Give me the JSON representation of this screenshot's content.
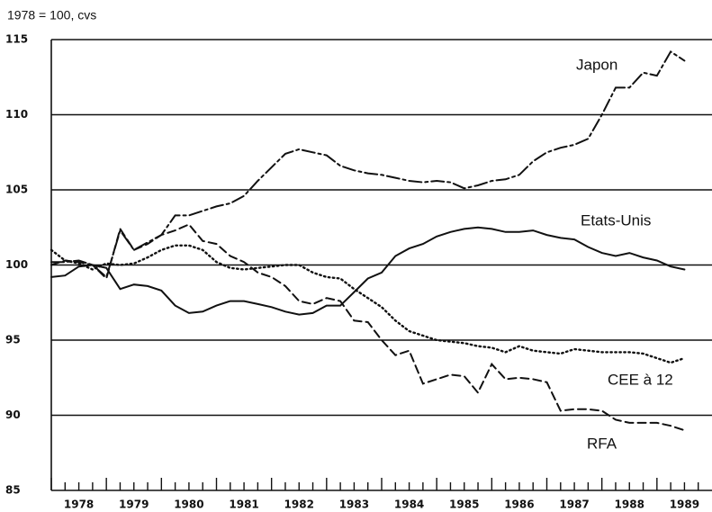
{
  "chart_data": {
    "type": "line",
    "y_label": "1978 = 100, cvs",
    "x": [
      1978,
      1978.25,
      1978.5,
      1978.75,
      1979,
      1979.25,
      1979.5,
      1979.75,
      1980,
      1980.25,
      1980.5,
      1980.75,
      1981,
      1981.25,
      1981.5,
      1981.75,
      1982,
      1982.25,
      1982.5,
      1982.75,
      1983,
      1983.25,
      1983.5,
      1983.75,
      1984,
      1984.25,
      1984.5,
      1984.75,
      1985,
      1985.25,
      1985.5,
      1985.75,
      1986,
      1986.25,
      1986.5,
      1986.75,
      1987,
      1987.25,
      1987.5,
      1987.75,
      1988,
      1988.25,
      1988.5,
      1988.75,
      1989,
      1989.25,
      1989.5
    ],
    "series": [
      {
        "name": "Japon",
        "color": "#111111",
        "style": "dashdot",
        "values": [
          100.2,
          100.2,
          100.3,
          100,
          99.2,
          102.3,
          101,
          101.5,
          102,
          103.3,
          103.3,
          103.6,
          103.9,
          104.1,
          104.6,
          105.6,
          106.5,
          107.4,
          107.7,
          107.5,
          107.3,
          106.6,
          106.3,
          106.1,
          106,
          105.8,
          105.6,
          105.5,
          105.6,
          105.5,
          105.1,
          105.3,
          105.6,
          105.7,
          106,
          106.9,
          107.5,
          107.8,
          108,
          108.4,
          110,
          111.8,
          111.8,
          112.8,
          112.6,
          114.2,
          113.6
        ]
      },
      {
        "name": "Etats-Unis",
        "color": "#111111",
        "style": "solid",
        "values": [
          99.2,
          99.3,
          99.9,
          100,
          99.8,
          98.4,
          98.7,
          98.6,
          98.3,
          97.3,
          96.8,
          96.9,
          97.3,
          97.6,
          97.6,
          97.4,
          97.2,
          96.9,
          96.7,
          96.8,
          97.3,
          97.3,
          98.2,
          99.1,
          99.5,
          100.6,
          101.1,
          101.4,
          101.9,
          102.2,
          102.4,
          102.5,
          102.4,
          102.2,
          102.2,
          102.3,
          102,
          101.8,
          101.7,
          101.2,
          100.8,
          100.6,
          100.8,
          100.5,
          100.3,
          99.9,
          99.7
        ]
      },
      {
        "name": "CEE à 12",
        "color": "#111111",
        "style": "dotted",
        "values": [
          101,
          100.3,
          100.1,
          99.7,
          100.1,
          100,
          100.1,
          100.5,
          101,
          101.3,
          101.3,
          101,
          100.2,
          99.8,
          99.7,
          99.8,
          99.9,
          100,
          100,
          99.5,
          99.2,
          99.1,
          98.4,
          97.8,
          97.2,
          96.3,
          95.6,
          95.3,
          95,
          94.9,
          94.8,
          94.6,
          94.5,
          94.2,
          94.6,
          94.3,
          94.2,
          94.1,
          94.4,
          94.3,
          94.2,
          94.2,
          94.2,
          94.1,
          93.8,
          93.5,
          93.8
        ]
      },
      {
        "name": "RFA",
        "color": "#111111",
        "style": "dashed",
        "values": [
          100,
          100.3,
          100.2,
          100,
          99.1,
          102.4,
          101,
          101.4,
          102,
          102.3,
          102.7,
          101.6,
          101.4,
          100.6,
          100.2,
          99.5,
          99.2,
          98.6,
          97.6,
          97.4,
          97.8,
          97.6,
          96.3,
          96.2,
          95,
          94,
          94.3,
          92.1,
          92.4,
          92.7,
          92.6,
          91.5,
          93.4,
          92.4,
          92.5,
          92.4,
          92.2,
          90.3,
          90.4,
          90.4,
          90.3,
          89.7,
          89.5,
          89.5,
          89.5,
          89.3,
          89
        ]
      }
    ],
    "xlim": [
      1978,
      1990
    ],
    "xticks": [
      {
        "value": 1978.5,
        "label": "1978"
      },
      {
        "value": 1979.5,
        "label": "1979"
      },
      {
        "value": 1980.5,
        "label": "1980"
      },
      {
        "value": 1981.5,
        "label": "1981"
      },
      {
        "value": 1982.5,
        "label": "1982"
      },
      {
        "value": 1983.5,
        "label": "1983"
      },
      {
        "value": 1984.5,
        "label": "1984"
      },
      {
        "value": 1985.5,
        "label": "1985"
      },
      {
        "value": 1986.5,
        "label": "1986"
      },
      {
        "value": 1987.5,
        "label": "1987"
      },
      {
        "value": 1988.5,
        "label": "1988"
      },
      {
        "value": 1989.5,
        "label": "1989"
      }
    ],
    "ylim": [
      85,
      115
    ],
    "yticks": [
      85,
      90,
      95,
      100,
      105,
      110,
      115
    ],
    "grid": true
  }
}
